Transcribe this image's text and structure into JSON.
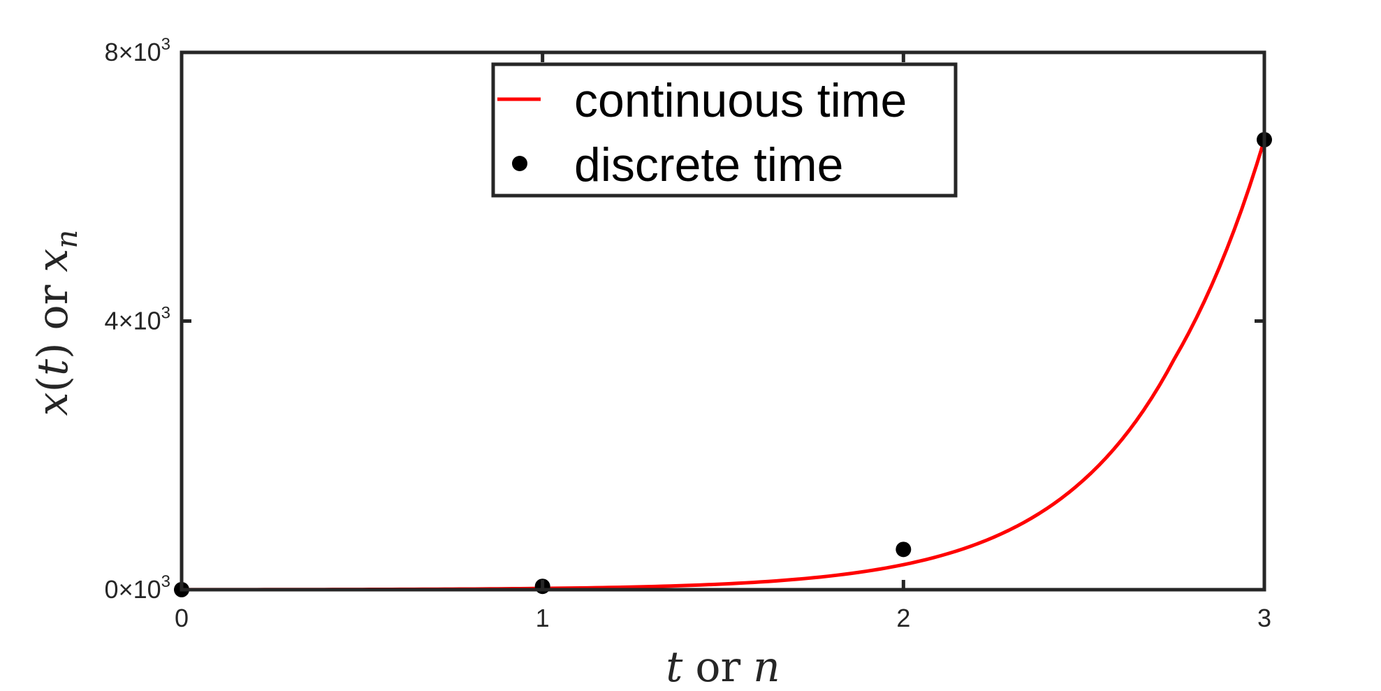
{
  "chart_data": {
    "type": "line",
    "title": "",
    "xlabel": {
      "var1": "t",
      "conj": "or",
      "var2": "n"
    },
    "ylabel": {
      "f": "x",
      "arg": "t",
      "conj": "or",
      "v": "x",
      "sub": "n"
    },
    "xlim": [
      0,
      3
    ],
    "ylim": [
      0,
      8000
    ],
    "x_ticks": [
      {
        "value": 0,
        "label": "0"
      },
      {
        "value": 1,
        "label": "1"
      },
      {
        "value": 2,
        "label": "2"
      },
      {
        "value": 3,
        "label": "3"
      }
    ],
    "y_ticks": [
      {
        "value": 0,
        "mant": "0",
        "exp": "3"
      },
      {
        "value": 4000,
        "mant": "4",
        "exp": "3"
      },
      {
        "value": 8000,
        "mant": "8",
        "exp": "3"
      }
    ],
    "y_tick_times": "×10",
    "grid": false,
    "legend_placement": "top-center",
    "series": [
      {
        "name": "continuous time",
        "style": "line",
        "color": "#ff0000",
        "x": [
          0,
          0.25,
          0.5,
          0.75,
          1,
          1.25,
          1.5,
          1.75,
          2,
          2.25,
          2.5,
          2.75,
          3
        ],
        "y": [
          1,
          2.09,
          4.39,
          9.2,
          19.3,
          40.4,
          84.8,
          177.7,
          372.6,
          781,
          1637,
          3431,
          6700
        ]
      },
      {
        "name": "discrete time",
        "style": "markers",
        "color": "#000000",
        "x": [
          0,
          1,
          2,
          3
        ],
        "y": [
          1,
          50,
          600,
          6700
        ]
      }
    ]
  }
}
